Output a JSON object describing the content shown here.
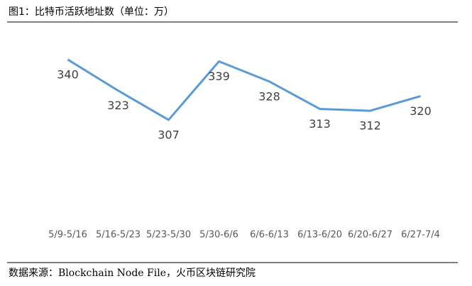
{
  "chart_data": {
    "type": "line",
    "title": "图1：比特币活跃地址数（单位：万）",
    "source": "数据来源：Blockchain Node File，火币区块链研究院",
    "categories": [
      "5/9-5/16",
      "5/16-5/23",
      "5/23-5/30",
      "5/30-6/6",
      "6/6-6/13",
      "6/13-6/20",
      "6/20-6/27",
      "6/27-7/4"
    ],
    "values": [
      340,
      323,
      307,
      339,
      328,
      313,
      312,
      320
    ],
    "color": "#5b9bd5",
    "ylim": [
      250,
      360
    ],
    "grid": false
  }
}
